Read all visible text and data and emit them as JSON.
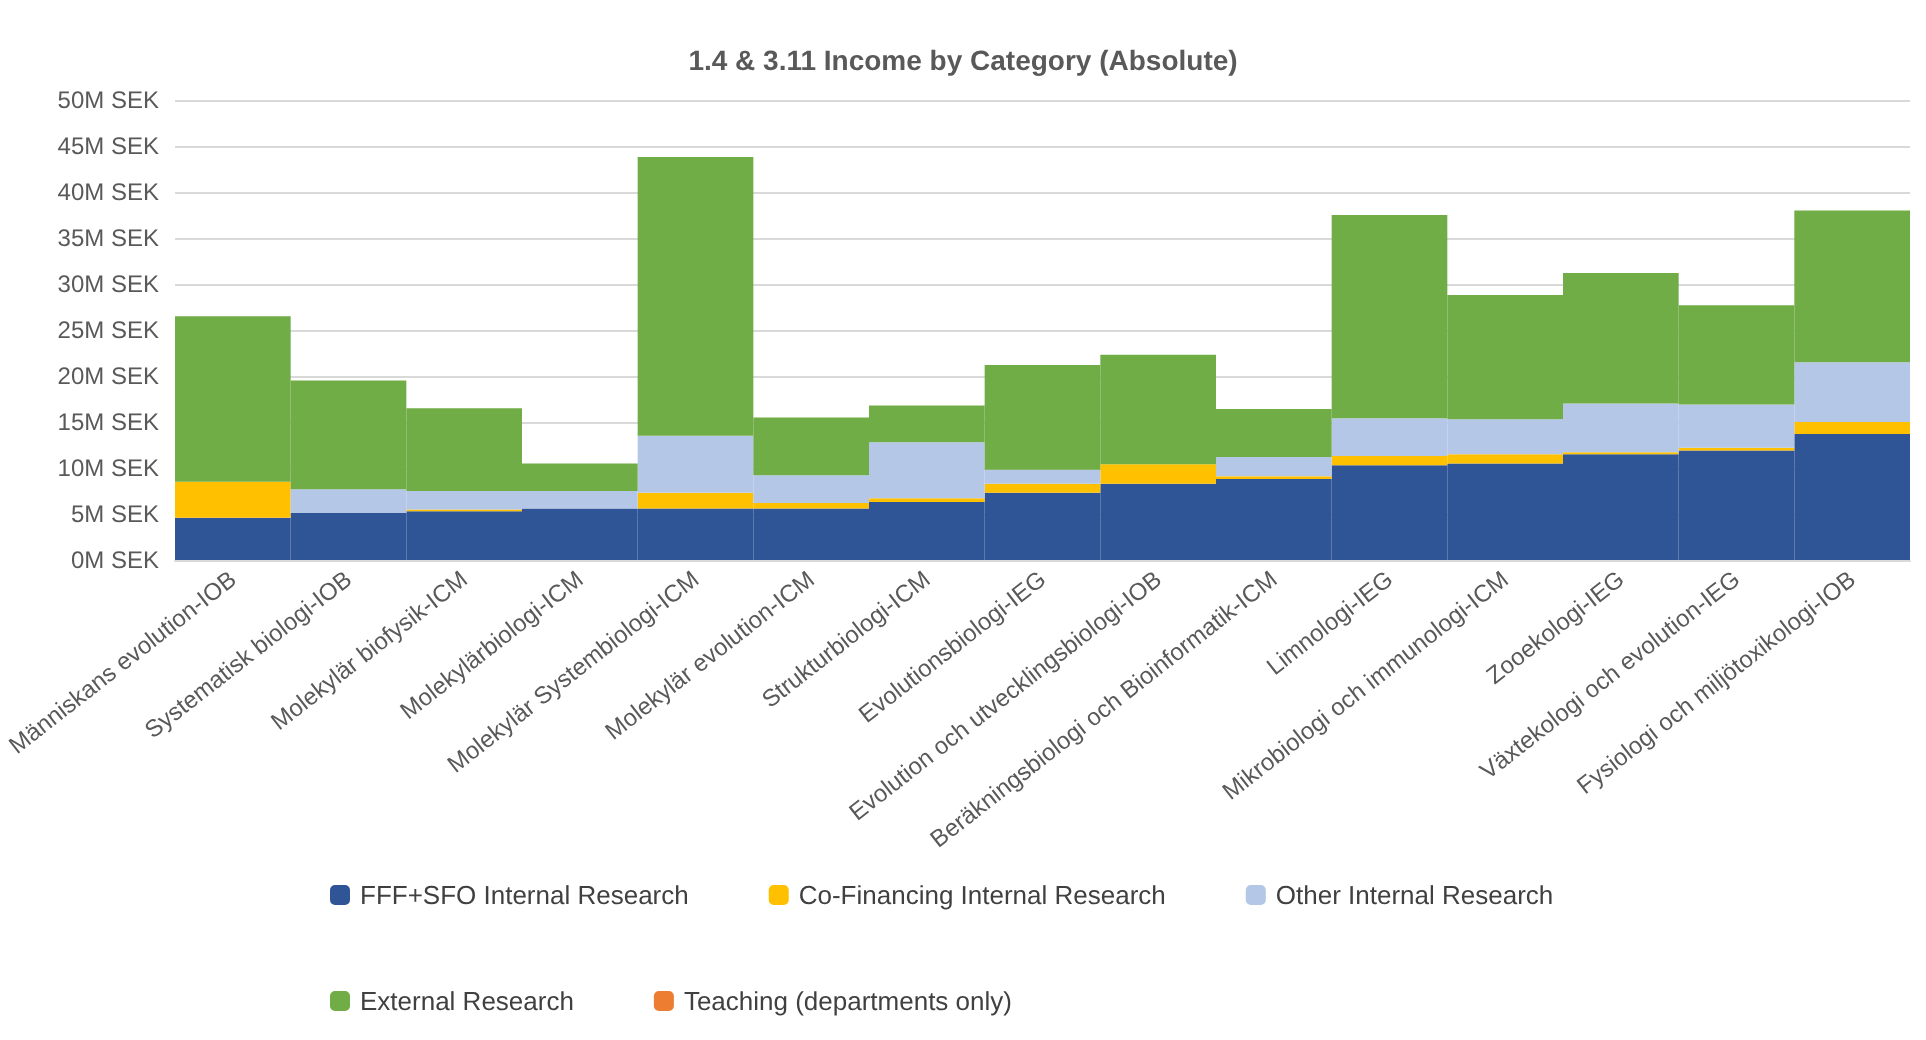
{
  "chart_data": {
    "type": "bar",
    "title": "1.4 & 3.11 Income by Category (Absolute)",
    "stacked": true,
    "grid": "y",
    "legend": "bottom",
    "categories": [
      "Människans evolution-IOB",
      "Systematisk biologi-IOB",
      "Molekylär biofysik-ICM",
      "Molekylärbiologi-ICM",
      "Molekylär Systembiologi-ICM",
      "Molekylär evolution-ICM",
      "Strukturbiologi-ICM",
      "Evolutionsbiologi-IEG",
      "Evolution och utvecklingsbiologi-IOB",
      "Beräkningsbiologi och Bioinformatik-ICM",
      "Limnologi-IEG",
      "Mikrobiologi och immunologi-ICM",
      "Zooekologi-IEG",
      "Växtekologi och evolution-IEG",
      "Fysiologi och miljötoxikologi-IOB"
    ],
    "series": [
      {
        "name": "FFF+SFO Internal Research",
        "color": "#2f5597",
        "values": [
          4.6,
          5.1,
          5.3,
          5.6,
          5.6,
          5.6,
          6.3,
          7.3,
          8.3,
          8.8,
          10.3,
          10.5,
          11.5,
          11.9,
          13.7
        ]
      },
      {
        "name": "Co-Financing Internal Research",
        "color": "#ffc000",
        "values": [
          3.9,
          0,
          0.2,
          0,
          1.7,
          0.6,
          0.4,
          1.0,
          2.1,
          0.3,
          1.0,
          1.0,
          0.2,
          0.3,
          1.3
        ]
      },
      {
        "name": "Other Internal Research",
        "color": "#b4c7e7",
        "values": [
          null,
          2.6,
          2.0,
          1.9,
          6.2,
          3.0,
          6.1,
          1.5,
          null,
          2.1,
          4.1,
          3.8,
          5.3,
          4.7,
          6.5
        ]
      },
      {
        "name": "External Research",
        "color": "#70ad47",
        "values": [
          18.0,
          11.8,
          9.0,
          3.0,
          30.3,
          6.3,
          4.0,
          11.4,
          11.9,
          5.2,
          22.1,
          13.5,
          14.2,
          10.8,
          16.5
        ]
      },
      {
        "name": "Teaching (departments only)",
        "color": "#ed7d31",
        "values": [
          0,
          0,
          0,
          0,
          0,
          0,
          0,
          0,
          0,
          0,
          0,
          0,
          0,
          0,
          0
        ]
      }
    ],
    "ylim": [
      0,
      50
    ],
    "yticks": [
      {
        "value": 0,
        "label": "0M SEK"
      },
      {
        "value": 5,
        "label": "5M SEK"
      },
      {
        "value": 10,
        "label": "10M SEK"
      },
      {
        "value": 15,
        "label": "15M SEK"
      },
      {
        "value": 20,
        "label": "20M SEK"
      },
      {
        "value": 25,
        "label": "25M SEK"
      },
      {
        "value": 30,
        "label": "30M SEK"
      },
      {
        "value": 35,
        "label": "35M SEK"
      },
      {
        "value": 40,
        "label": "40M SEK"
      },
      {
        "value": 45,
        "label": "45M SEK"
      },
      {
        "value": 50,
        "label": "50M SEK"
      }
    ]
  }
}
